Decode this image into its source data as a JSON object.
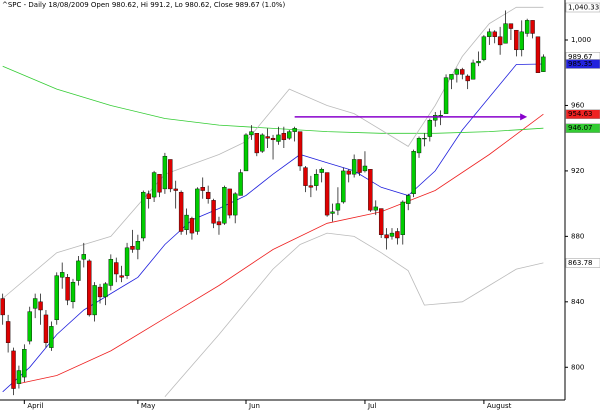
{
  "chart_data": {
    "type": "candlestick",
    "title": "^SPC - Daily 18/08/2009 Open 980.62, Hi 991.2, Lo 980.62, Close 989.67 (1.0%)",
    "top_label": "1,040.33",
    "xlim": [
      -0.5,
      104
    ],
    "ylim": [
      780,
      1022
    ],
    "xticks": [
      {
        "value": 4,
        "label": "April"
      },
      {
        "value": 25,
        "label": "May"
      },
      {
        "value": 45,
        "label": "Jun"
      },
      {
        "value": 67,
        "label": "Jul"
      },
      {
        "value": 89,
        "label": "August"
      }
    ],
    "yticks": [
      800,
      840,
      880,
      920,
      960,
      {
        "value": 1000,
        "label": "1,000"
      }
    ],
    "up_color": "#00cc00",
    "down_color": "#dd0000",
    "open": [
      842,
      828,
      810,
      790,
      794,
      816,
      836,
      840,
      832,
      812,
      829,
      855,
      855,
      840,
      853,
      866,
      865,
      832,
      849,
      843,
      850,
      864,
      856,
      856,
      874,
      872,
      879,
      906,
      904,
      918,
      909,
      927,
      909,
      907,
      884,
      891,
      883,
      910,
      907,
      902,
      889,
      888,
      909,
      893,
      905,
      920,
      942,
      943,
      932,
      941,
      940,
      938,
      943,
      940,
      944,
      944,
      922,
      911,
      911,
      919,
      919,
      894,
      896,
      901,
      920,
      918,
      927,
      920,
      921,
      896,
      897,
      881,
      880,
      883,
      881,
      900,
      906,
      931,
      940,
      941,
      951,
      954,
      955,
      976,
      979,
      982,
      978,
      976,
      986,
      988,
      1002,
      1005,
      1002,
      998,
      1010,
      1006,
      994,
      1004,
      1012,
      1002,
      980.62
    ],
    "high": [
      845,
      832,
      812,
      801,
      814,
      837,
      845,
      845,
      835,
      828,
      858,
      864,
      857,
      854,
      868,
      876,
      866,
      852,
      851,
      852,
      869,
      867,
      862,
      876,
      884,
      881,
      908,
      908,
      920,
      918,
      931,
      927,
      914,
      908,
      897,
      892,
      910,
      916,
      911,
      903,
      892,
      911,
      909,
      907,
      921,
      943,
      948,
      943,
      943,
      946,
      942,
      947,
      947,
      945,
      947,
      944,
      923,
      917,
      921,
      922,
      919,
      900,
      910,
      922,
      921,
      930,
      927,
      932,
      921,
      902,
      897,
      885,
      885,
      885,
      902,
      906,
      933,
      941,
      943,
      952,
      956,
      957,
      979,
      979,
      983,
      983,
      979,
      988,
      993,
      1003,
      1007,
      1006,
      1008,
      1018,
      1010,
      1006,
      1012,
      1013,
      1012,
      1002,
      991.2
    ],
    "low": [
      826,
      809,
      783,
      787,
      791,
      814,
      830,
      826,
      812,
      810,
      826,
      848,
      838,
      836,
      850,
      861,
      831,
      828,
      839,
      838,
      847,
      852,
      852,
      854,
      870,
      866,
      877,
      897,
      901,
      904,
      906,
      907,
      897,
      881,
      881,
      878,
      881,
      903,
      900,
      885,
      881,
      887,
      891,
      888,
      905,
      920,
      939,
      929,
      931,
      934,
      927,
      936,
      934,
      939,
      938,
      920,
      907,
      904,
      908,
      913,
      892,
      889,
      893,
      900,
      913,
      916,
      917,
      919,
      895,
      893,
      879,
      872,
      878,
      875,
      875,
      896,
      904,
      928,
      935,
      938,
      947,
      948,
      955,
      970,
      974,
      976,
      970,
      976,
      984,
      987,
      997,
      998,
      991,
      998,
      1000,
      990,
      990,
      1002,
      1001,
      980,
      980.62
    ],
    "close": [
      832,
      815,
      787,
      798,
      811,
      834,
      842,
      835,
      815,
      825,
      856,
      858,
      841,
      852,
      865,
      869,
      832,
      850,
      843,
      851,
      866,
      857,
      855,
      873,
      872,
      877,
      907,
      903,
      919,
      907,
      929,
      909,
      908,
      883,
      893,
      882,
      909,
      908,
      903,
      888,
      887,
      910,
      893,
      906,
      919,
      942,
      944,
      931,
      942,
      940,
      939,
      942,
      939,
      944,
      946,
      923,
      911,
      910,
      918,
      921,
      893,
      895,
      900,
      920,
      918,
      927,
      919,
      923,
      896,
      898,
      881,
      879,
      882,
      879,
      901,
      905,
      932,
      940,
      940,
      951,
      954,
      954,
      977,
      979,
      982,
      979,
      975,
      986,
      987,
      1002,
      1005,
      1002,
      997,
      1010,
      1007,
      994,
      1005,
      1012,
      1004,
      980,
      989.67
    ],
    "lines": [
      {
        "color": "#2222dd",
        "x": [
          0,
          5,
          10,
          15,
          20,
          25,
          30,
          35,
          40,
          45,
          50,
          55,
          60,
          65,
          70,
          75,
          80,
          85,
          90,
          95,
          100
        ],
        "values": [
          785,
          800,
          820,
          835,
          845,
          855,
          875,
          890,
          897,
          905,
          918,
          930,
          925,
          920,
          910,
          905,
          920,
          945,
          965,
          985,
          985.35
        ]
      },
      {
        "color": "#ee2222",
        "x": [
          3,
          10,
          20,
          30,
          40,
          50,
          60,
          70,
          80,
          90,
          100
        ],
        "values": [
          790,
          795,
          810,
          830,
          850,
          872,
          888,
          895,
          908,
          930,
          954.63
        ]
      },
      {
        "color": "#33cc33",
        "x": [
          0,
          10,
          20,
          30,
          40,
          50,
          60,
          70,
          80,
          90,
          100
        ],
        "values": [
          984,
          970,
          960,
          952,
          948,
          946,
          944,
          943,
          943,
          944,
          946.07
        ]
      },
      {
        "color": "#bbbbbb",
        "x": [
          0,
          10,
          20,
          30,
          40,
          45,
          53,
          60,
          65,
          70,
          75,
          80,
          85,
          90,
          95,
          100
        ],
        "values": [
          842,
          870,
          880,
          918,
          930,
          938,
          970,
          960,
          955,
          945,
          935,
          960,
          990,
          1010,
          1020,
          1020
        ]
      },
      {
        "color": "#bbbbbb",
        "x": [
          30,
          40,
          50,
          55,
          60,
          65,
          70,
          75,
          78,
          85,
          90,
          95,
          100
        ],
        "values": [
          782,
          820,
          860,
          875,
          882,
          880,
          870,
          859,
          838,
          840,
          850,
          860,
          863.78
        ]
      }
    ],
    "arrow": {
      "color": "#8800cc",
      "x": [
        54,
        97
      ],
      "value": 953
    },
    "price_labels": [
      {
        "value": 989.67,
        "label": "989.67",
        "color": "#ffffff"
      },
      {
        "value": 985.35,
        "label": "985.35",
        "color": "#2222dd"
      },
      {
        "value": 954.63,
        "label": "954.63",
        "color": "#ee2222"
      },
      {
        "value": 946.07,
        "label": "946.07",
        "color": "#33cc33"
      },
      {
        "value": 863.78,
        "label": "863.78",
        "color": "#ffffff"
      }
    ]
  }
}
